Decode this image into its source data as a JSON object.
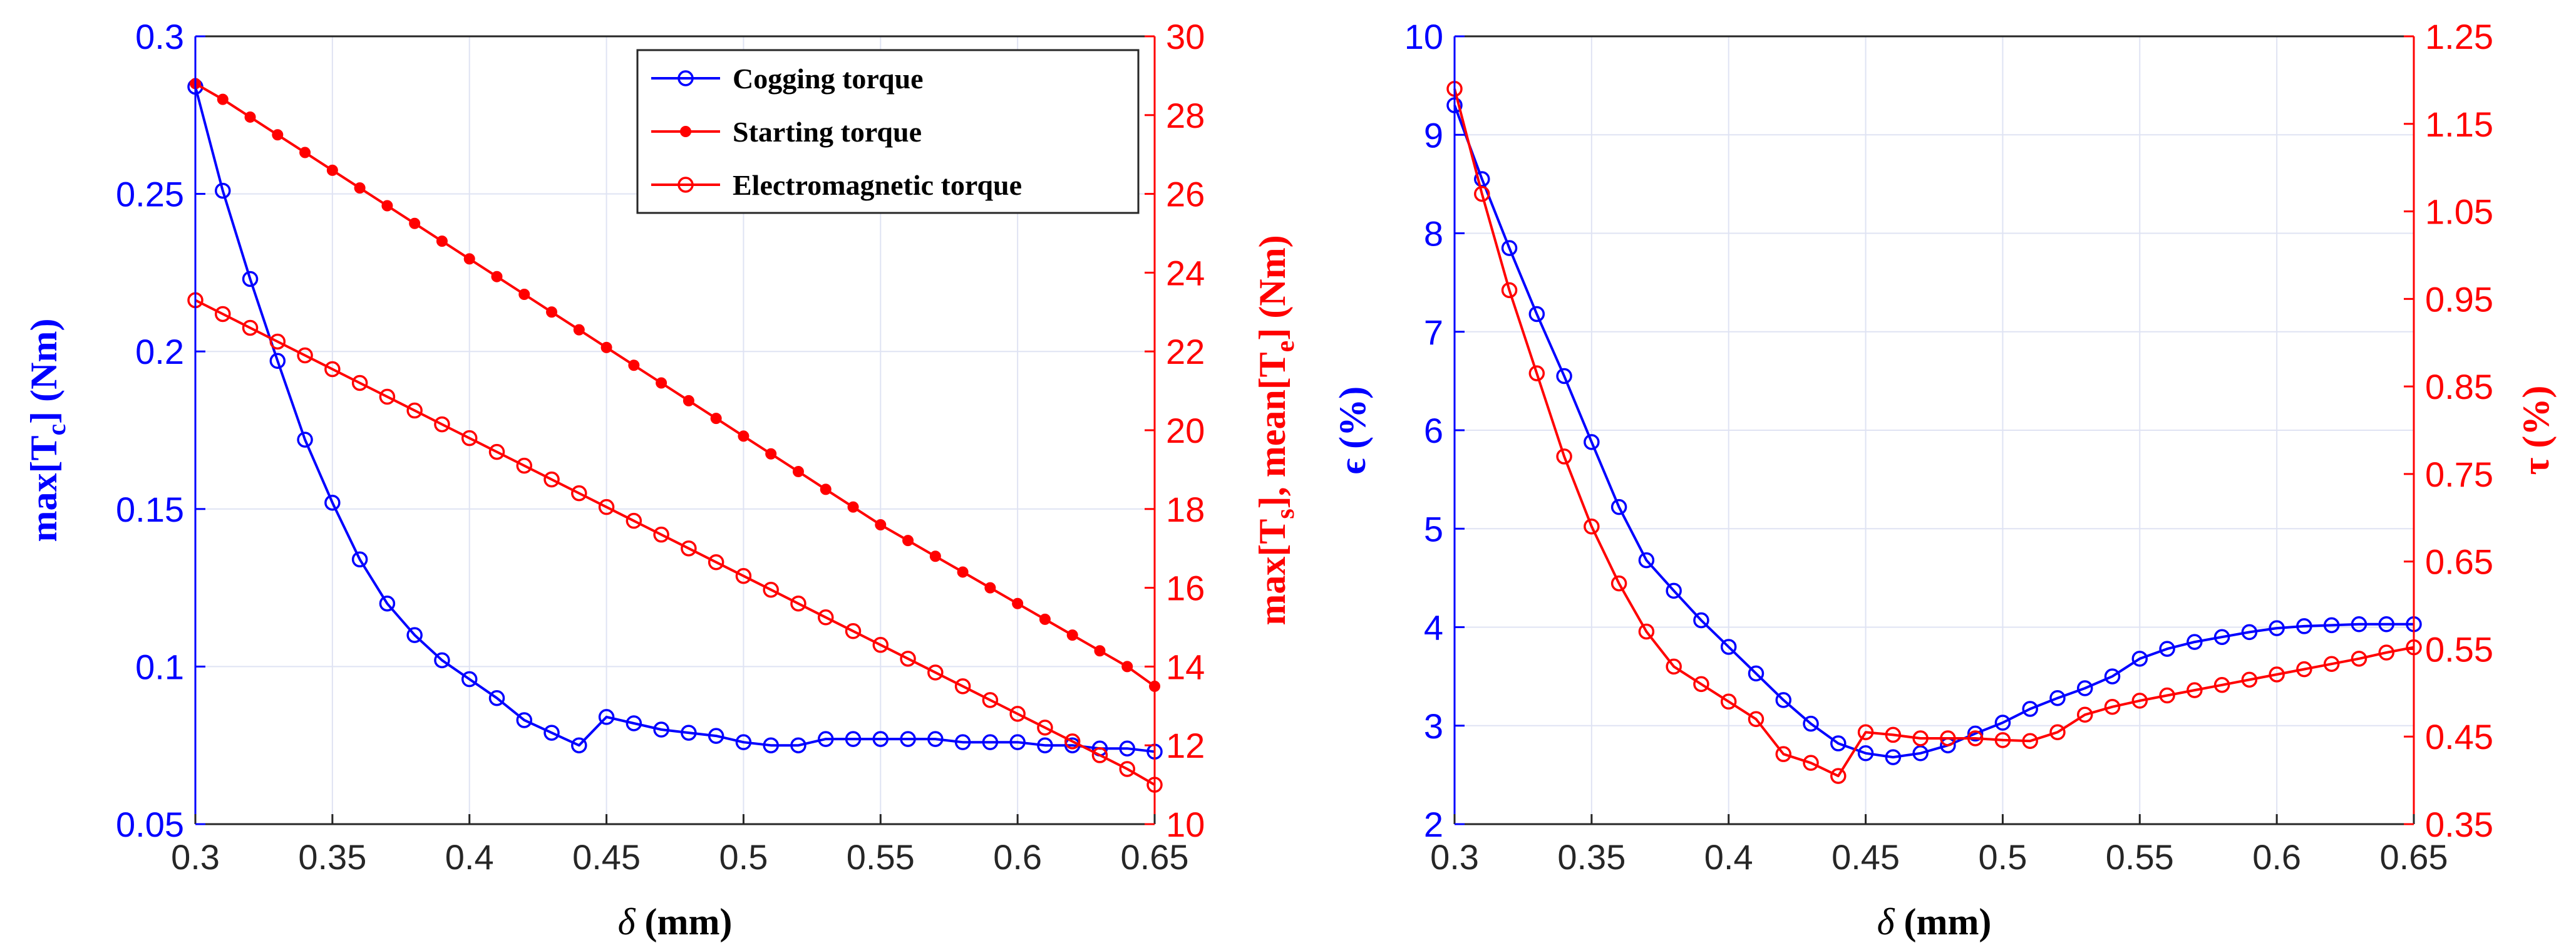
{
  "chart_data": [
    {
      "type": "line",
      "id": "left",
      "xlabel": "δ (mm)",
      "x_ticks": [
        "0.3",
        "0.35",
        "0.4",
        "0.45",
        "0.5",
        "0.55",
        "0.6",
        "0.65"
      ],
      "xlim": [
        0.3,
        0.65
      ],
      "y_left": {
        "label": "max[Tc] (Nm)",
        "label_main": "max[T",
        "label_sub": "c",
        "label_tail": "] (Nm)",
        "color": "#0000ff",
        "ylim": [
          0.05,
          0.3
        ],
        "ticks": [
          "0.05",
          "0.1",
          "0.15",
          "0.2",
          "0.25",
          "0.3"
        ]
      },
      "y_right": {
        "label": "max[Ts], mean[Te] (Nm)",
        "label_p1": "max[T",
        "label_s1": "s",
        "label_p2": "], mean[T",
        "label_s2": "e",
        "label_p3": "] (Nm)",
        "color": "#ff0000",
        "ylim": [
          10,
          30
        ],
        "ticks": [
          "10",
          "12",
          "14",
          "16",
          "18",
          "20",
          "22",
          "24",
          "26",
          "28",
          "30"
        ]
      },
      "legend": {
        "position": "top-right",
        "entries": [
          "Cogging torque",
          "Starting torque",
          "Electromagnetic torque"
        ]
      },
      "x": [
        0.3,
        0.31,
        0.32,
        0.33,
        0.34,
        0.35,
        0.36,
        0.37,
        0.38,
        0.39,
        0.4,
        0.41,
        0.42,
        0.43,
        0.44,
        0.45,
        0.46,
        0.47,
        0.48,
        0.49,
        0.5,
        0.51,
        0.52,
        0.53,
        0.54,
        0.55,
        0.56,
        0.57,
        0.58,
        0.59,
        0.6,
        0.61,
        0.62,
        0.63,
        0.64,
        0.65
      ],
      "series": [
        {
          "name": "Cogging torque",
          "axis": "left",
          "color": "#0000ff",
          "marker": "circle",
          "values": [
            0.284,
            0.251,
            0.223,
            0.197,
            0.172,
            0.152,
            0.134,
            0.12,
            0.11,
            0.102,
            0.096,
            0.09,
            0.083,
            0.079,
            0.075,
            0.084,
            0.082,
            0.08,
            0.079,
            0.078,
            0.076,
            0.075,
            0.075,
            0.077,
            0.077,
            0.077,
            0.077,
            0.077,
            0.076,
            0.076,
            0.076,
            0.075,
            0.075,
            0.074,
            0.074,
            0.073
          ]
        },
        {
          "name": "Starting torque",
          "axis": "right",
          "color": "#ff0000",
          "marker": "dot",
          "values": [
            28.8,
            28.4,
            27.95,
            27.5,
            27.05,
            26.6,
            26.15,
            25.7,
            25.25,
            24.8,
            24.35,
            23.9,
            23.45,
            23.0,
            22.55,
            22.1,
            21.65,
            21.2,
            20.75,
            20.3,
            19.85,
            19.4,
            18.95,
            18.5,
            18.05,
            17.6,
            17.2,
            16.8,
            16.4,
            16.0,
            15.6,
            15.2,
            14.8,
            14.4,
            14.0,
            13.5
          ]
        },
        {
          "name": "Electromagnetic torque",
          "axis": "right",
          "color": "#ff0000",
          "marker": "circle",
          "values": [
            23.3,
            22.95,
            22.6,
            22.25,
            21.9,
            21.55,
            21.2,
            20.85,
            20.5,
            20.15,
            19.8,
            19.45,
            19.1,
            18.75,
            18.4,
            18.05,
            17.7,
            17.35,
            17.0,
            16.65,
            16.3,
            15.95,
            15.6,
            15.25,
            14.9,
            14.55,
            14.2,
            13.85,
            13.5,
            13.15,
            12.8,
            12.45,
            12.1,
            11.75,
            11.4,
            11.0
          ]
        }
      ]
    },
    {
      "type": "line",
      "id": "right",
      "xlabel": "δ (mm)",
      "x_ticks": [
        "0.3",
        "0.35",
        "0.4",
        "0.45",
        "0.5",
        "0.55",
        "0.6",
        "0.65"
      ],
      "xlim": [
        0.3,
        0.65
      ],
      "y_left": {
        "label": "ϵ (%)",
        "color": "#0000ff",
        "ylim": [
          2,
          10
        ],
        "ticks": [
          "2",
          "3",
          "4",
          "5",
          "6",
          "7",
          "8",
          "9",
          "10"
        ]
      },
      "y_right": {
        "label": "τ (%)",
        "color": "#ff0000",
        "ylim": [
          0.35,
          1.25
        ],
        "ticks": [
          "0.35",
          "0.45",
          "0.55",
          "0.65",
          "0.75",
          "0.85",
          "0.95",
          "1.05",
          "1.15",
          "1.25"
        ]
      },
      "x": [
        0.3,
        0.31,
        0.32,
        0.33,
        0.34,
        0.35,
        0.36,
        0.37,
        0.38,
        0.39,
        0.4,
        0.41,
        0.42,
        0.43,
        0.44,
        0.45,
        0.46,
        0.47,
        0.48,
        0.49,
        0.5,
        0.51,
        0.52,
        0.53,
        0.54,
        0.55,
        0.56,
        0.57,
        0.58,
        0.59,
        0.6,
        0.61,
        0.62,
        0.63,
        0.64,
        0.65
      ],
      "series": [
        {
          "name": "ϵ",
          "axis": "left",
          "color": "#0000ff",
          "marker": "circle",
          "values": [
            9.3,
            8.55,
            7.85,
            7.18,
            6.55,
            5.88,
            5.22,
            4.68,
            4.37,
            4.07,
            3.8,
            3.53,
            3.26,
            3.02,
            2.82,
            2.72,
            2.68,
            2.72,
            2.8,
            2.92,
            3.03,
            3.17,
            3.28,
            3.38,
            3.5,
            3.68,
            3.78,
            3.85,
            3.9,
            3.95,
            3.99,
            4.01,
            4.02,
            4.03,
            4.03,
            4.03
          ]
        },
        {
          "name": "τ",
          "axis": "right",
          "color": "#ff0000",
          "marker": "circle",
          "values": [
            1.19,
            1.07,
            0.96,
            0.865,
            0.77,
            0.69,
            0.625,
            0.57,
            0.53,
            0.51,
            0.49,
            0.47,
            0.43,
            0.42,
            0.405,
            0.455,
            0.452,
            0.448,
            0.448,
            0.448,
            0.446,
            0.445,
            0.455,
            0.475,
            0.484,
            0.491,
            0.497,
            0.503,
            0.509,
            0.515,
            0.521,
            0.527,
            0.533,
            0.539,
            0.546,
            0.552
          ]
        }
      ]
    }
  ]
}
